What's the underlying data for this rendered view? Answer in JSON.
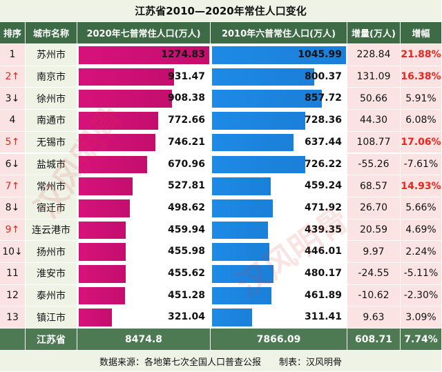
{
  "title": "江苏省2010—2020年常住人口变化",
  "columns": [
    "排序",
    "城市名称",
    "2020年七普常住人口(万人)",
    "2010年六普常住人口(万人)",
    "增量(万人)",
    "增幅"
  ],
  "rows": [
    {
      "rank": "1",
      "city": "苏州市",
      "pop2020": 1274.83,
      "pop2010": 1045.99,
      "increase": "228.84",
      "growth": "21.88%",
      "growth_red": true
    },
    {
      "rank": "2↑",
      "rank_red": true,
      "city": "南京市",
      "pop2020": 931.47,
      "pop2010": 800.37,
      "increase": "131.09",
      "growth": "16.38%",
      "growth_red": true
    },
    {
      "rank": "3↓",
      "city": "徐州市",
      "pop2020": 908.38,
      "pop2010": 857.72,
      "increase": "50.66",
      "growth": "5.91%"
    },
    {
      "rank": "4",
      "city": "南通市",
      "pop2020": 772.66,
      "pop2010": 728.36,
      "increase": "44.30",
      "growth": "6.08%"
    },
    {
      "rank": "5↑",
      "rank_red": true,
      "city": "无锡市",
      "pop2020": 746.21,
      "pop2010": 637.44,
      "increase": "108.77",
      "growth": "17.06%",
      "growth_red": true
    },
    {
      "rank": "6↓",
      "city": "盐城市",
      "pop2020": 670.96,
      "pop2010": 726.22,
      "increase": "-55.26",
      "growth": "-7.61%"
    },
    {
      "rank": "7↑",
      "rank_red": true,
      "city": "常州市",
      "pop2020": 527.81,
      "pop2010": 459.24,
      "increase": "68.57",
      "growth": "14.93%",
      "growth_red": true
    },
    {
      "rank": "8↓",
      "city": "宿迁市",
      "pop2020": 498.62,
      "pop2010": 471.92,
      "increase": "26.70",
      "growth": "5.66%"
    },
    {
      "rank": "9↑",
      "rank_red": true,
      "city": "连云港市",
      "pop2020": 459.94,
      "pop2010": 439.35,
      "increase": "20.59",
      "growth": "4.69%"
    },
    {
      "rank": "10↓",
      "city": "扬州市",
      "pop2020": 455.98,
      "pop2010": 446.01,
      "increase": "9.97",
      "growth": "2.24%"
    },
    {
      "rank": "11",
      "city": "淮安市",
      "pop2020": 455.62,
      "pop2010": 480.17,
      "increase": "-24.55",
      "growth": "-5.11%"
    },
    {
      "rank": "12",
      "city": "泰州市",
      "pop2020": 451.28,
      "pop2010": 461.89,
      "increase": "-10.62",
      "growth": "-2.30%"
    },
    {
      "rank": "13",
      "city": "镇江市",
      "pop2020": 321.04,
      "pop2010": 311.41,
      "increase": "9.63",
      "growth": "3.09%"
    }
  ],
  "total": {
    "city": "江苏省",
    "pop2020": 8474.8,
    "pop2010": 7866.09,
    "increase": "608.71",
    "growth": "7.74%"
  },
  "footer": "数据来源：各地第七次全国人口普查公报　　制表：汉风明骨",
  "watermark": "汉风明骨"
}
